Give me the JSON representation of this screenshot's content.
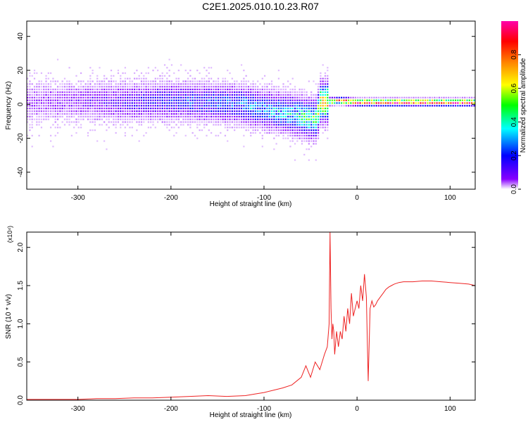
{
  "figure": {
    "title": "C2E1.2025.010.10.23.R07"
  },
  "chart_data": [
    {
      "type": "heatmap",
      "xlabel": "Height of straight line (km)",
      "ylabel": "Frequency (Hz)",
      "xlim": [
        -355,
        127
      ],
      "ylim": [
        -50,
        49
      ],
      "xticks": [
        -300,
        -200,
        -100,
        0,
        100
      ],
      "yticks": [
        -40,
        -20,
        0,
        20,
        40
      ],
      "colorbar": {
        "label": "Normalized spectral amplitude",
        "range": [
          0,
          1
        ],
        "ticks": [
          0.0,
          0.2,
          0.4,
          0.6,
          0.8
        ],
        "colors": [
          "#ffffff",
          "#8800ff",
          "#0000ff",
          "#00ffff",
          "#00ff00",
          "#ffff00",
          "#ff8800",
          "#ff0000",
          "#ff00aa"
        ]
      },
      "ridge": [
        {
          "x": -340,
          "f": 0,
          "amp": 0.08
        },
        {
          "x": -300,
          "f": 1,
          "amp": 0.1
        },
        {
          "x": -250,
          "f": 0,
          "amp": 0.15
        },
        {
          "x": -200,
          "f": 1,
          "amp": 0.2
        },
        {
          "x": -160,
          "f": 0,
          "amp": 0.22
        },
        {
          "x": -130,
          "f": -1,
          "amp": 0.25
        },
        {
          "x": -110,
          "f": -3,
          "amp": 0.28
        },
        {
          "x": -90,
          "f": -5,
          "amp": 0.3
        },
        {
          "x": -70,
          "f": -7,
          "amp": 0.35
        },
        {
          "x": -55,
          "f": -9,
          "amp": 0.4
        },
        {
          "x": -45,
          "f": -10,
          "amp": 0.45
        },
        {
          "x": -40,
          "f": 0,
          "amp": 0.6
        },
        {
          "x": -20,
          "f": 1,
          "amp": 0.75
        },
        {
          "x": 0,
          "f": 0,
          "amp": 0.85
        },
        {
          "x": 127,
          "f": 0,
          "amp": 0.9
        }
      ],
      "grid": false
    },
    {
      "type": "line",
      "xlabel": "Height of straight line (km)",
      "ylabel": "SNR (10 * v/v)",
      "yscale_label": "(x10⁴)",
      "xlim": [
        -355,
        127
      ],
      "ylim": [
        0,
        2.2
      ],
      "xticks": [
        -300,
        -200,
        -100,
        0,
        100
      ],
      "yticks": [
        0.0,
        0.5,
        1.0,
        1.5,
        2.0
      ],
      "ytick_labels": [
        "0.0",
        "0.5",
        "1.0",
        "1.5",
        "2.0"
      ],
      "series": [
        {
          "color": "#ee2222",
          "x": [
            -355,
            -340,
            -320,
            -300,
            -280,
            -260,
            -240,
            -220,
            -200,
            -180,
            -160,
            -140,
            -120,
            -110,
            -100,
            -90,
            -80,
            -70,
            -60,
            -55,
            -50,
            -45,
            -40,
            -35,
            -32,
            -30,
            -29,
            -28,
            -27,
            -26,
            -25,
            -24,
            -22,
            -20,
            -18,
            -16,
            -14,
            -12,
            -10,
            -8,
            -6,
            -4,
            -2,
            0,
            2,
            4,
            6,
            8,
            10,
            12,
            14,
            16,
            18,
            20,
            22,
            25,
            28,
            31,
            34,
            37,
            40,
            45,
            50,
            60,
            70,
            80,
            90,
            100,
            110,
            120,
            127
          ],
          "y": [
            0.01,
            0.01,
            0.01,
            0.01,
            0.02,
            0.02,
            0.03,
            0.03,
            0.04,
            0.05,
            0.06,
            0.05,
            0.06,
            0.08,
            0.1,
            0.13,
            0.16,
            0.2,
            0.3,
            0.45,
            0.3,
            0.5,
            0.4,
            0.6,
            0.7,
            1.0,
            2.2,
            1.2,
            0.8,
            1.0,
            0.9,
            0.6,
            0.9,
            0.7,
            0.9,
            0.8,
            1.1,
            0.9,
            1.2,
            1.0,
            1.4,
            1.1,
            1.2,
            1.3,
            1.2,
            1.5,
            1.3,
            1.65,
            1.35,
            0.25,
            1.2,
            1.3,
            1.22,
            1.25,
            1.3,
            1.35,
            1.4,
            1.45,
            1.48,
            1.5,
            1.52,
            1.54,
            1.55,
            1.55,
            1.56,
            1.56,
            1.55,
            1.54,
            1.53,
            1.52,
            1.5
          ]
        }
      ],
      "grid": false
    }
  ]
}
